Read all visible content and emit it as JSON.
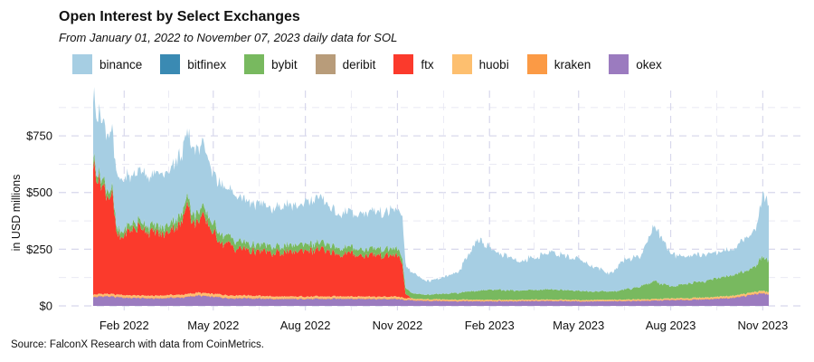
{
  "chart_data": {
    "type": "area",
    "title": "Open Interest by Select Exchanges",
    "subtitle": "From January 01, 2022 to November 07, 2023 daily data for SOL",
    "ylabel": "in USD millions",
    "xlabel": "",
    "source": "Source: FalconX Research with data from CoinMetrics.",
    "ylim": [
      0,
      950
    ],
    "y_ticks": [
      0,
      250,
      500,
      750
    ],
    "y_tick_labels": [
      "$0",
      "$250",
      "$500",
      "$750"
    ],
    "x_tick_labels": [
      "Feb 2022",
      "May 2022",
      "Aug 2022",
      "Nov 2022",
      "Feb 2023",
      "May 2023",
      "Aug 2023",
      "Nov 2023"
    ],
    "x_tick_dates": [
      "2022-02-01",
      "2022-05-01",
      "2022-08-01",
      "2022-11-01",
      "2023-02-01",
      "2023-05-01",
      "2023-08-01",
      "2023-11-01"
    ],
    "x_range": [
      "2022-01-01",
      "2023-11-07"
    ],
    "grid": true,
    "legend_position": "top",
    "stacked": true,
    "series": [
      {
        "name": "okex",
        "color": "#9b7bbf",
        "points": [
          [
            "2022-01-01",
            40
          ],
          [
            "2022-01-15",
            42
          ],
          [
            "2022-02-01",
            36
          ],
          [
            "2022-03-01",
            32
          ],
          [
            "2022-04-01",
            38
          ],
          [
            "2022-04-15",
            45
          ],
          [
            "2022-05-01",
            40
          ],
          [
            "2022-05-15",
            35
          ],
          [
            "2022-06-01",
            34
          ],
          [
            "2022-07-01",
            30
          ],
          [
            "2022-08-01",
            30
          ],
          [
            "2022-09-01",
            32
          ],
          [
            "2022-10-01",
            30
          ],
          [
            "2022-11-01",
            30
          ],
          [
            "2022-11-10",
            25
          ],
          [
            "2022-12-01",
            22
          ],
          [
            "2023-01-01",
            20
          ],
          [
            "2023-02-01",
            20
          ],
          [
            "2023-03-01",
            20
          ],
          [
            "2023-04-01",
            22
          ],
          [
            "2023-05-01",
            20
          ],
          [
            "2023-06-01",
            20
          ],
          [
            "2023-07-01",
            22
          ],
          [
            "2023-08-01",
            25
          ],
          [
            "2023-09-01",
            28
          ],
          [
            "2023-10-01",
            35
          ],
          [
            "2023-11-01",
            55
          ],
          [
            "2023-11-07",
            50
          ]
        ]
      },
      {
        "name": "kraken",
        "color": "#fb9a45",
        "points": [
          [
            "2022-01-01",
            3
          ],
          [
            "2022-06-01",
            3
          ],
          [
            "2022-11-01",
            3
          ],
          [
            "2023-06-01",
            2
          ],
          [
            "2023-11-07",
            3
          ]
        ]
      },
      {
        "name": "huobi",
        "color": "#fdbf6f",
        "points": [
          [
            "2022-01-01",
            8
          ],
          [
            "2022-05-01",
            10
          ],
          [
            "2022-08-01",
            8
          ],
          [
            "2022-11-01",
            8
          ],
          [
            "2022-11-10",
            5
          ],
          [
            "2023-03-01",
            4
          ],
          [
            "2023-08-01",
            5
          ],
          [
            "2023-11-07",
            8
          ]
        ]
      },
      {
        "name": "ftx",
        "color": "#fb3a2c",
        "points": [
          [
            "2022-01-01",
            570
          ],
          [
            "2022-01-07",
            480
          ],
          [
            "2022-01-20",
            430
          ],
          [
            "2022-01-25",
            250
          ],
          [
            "2022-02-15",
            300
          ],
          [
            "2022-03-01",
            280
          ],
          [
            "2022-03-15",
            270
          ],
          [
            "2022-04-01",
            330
          ],
          [
            "2022-04-05",
            420
          ],
          [
            "2022-04-10",
            300
          ],
          [
            "2022-04-20",
            330
          ],
          [
            "2022-05-01",
            270
          ],
          [
            "2022-05-10",
            230
          ],
          [
            "2022-06-01",
            200
          ],
          [
            "2022-07-01",
            190
          ],
          [
            "2022-08-01",
            200
          ],
          [
            "2022-08-15",
            205
          ],
          [
            "2022-09-01",
            190
          ],
          [
            "2022-10-01",
            180
          ],
          [
            "2022-11-01",
            190
          ],
          [
            "2022-11-06",
            150
          ],
          [
            "2022-11-09",
            20
          ],
          [
            "2022-11-15",
            0
          ],
          [
            "2023-11-07",
            0
          ]
        ]
      },
      {
        "name": "deribit",
        "color": "#b89c7a",
        "points": [
          [
            "2022-01-01",
            0
          ],
          [
            "2023-11-07",
            0
          ]
        ]
      },
      {
        "name": "bybit",
        "color": "#78b95f",
        "points": [
          [
            "2022-01-01",
            30
          ],
          [
            "2022-02-01",
            25
          ],
          [
            "2022-03-01",
            28
          ],
          [
            "2022-04-01",
            35
          ],
          [
            "2022-05-01",
            40
          ],
          [
            "2022-06-01",
            30
          ],
          [
            "2022-07-01",
            28
          ],
          [
            "2022-08-01",
            30
          ],
          [
            "2022-09-01",
            28
          ],
          [
            "2022-10-01",
            28
          ],
          [
            "2022-11-01",
            30
          ],
          [
            "2022-11-10",
            25
          ],
          [
            "2022-12-01",
            20
          ],
          [
            "2023-01-01",
            30
          ],
          [
            "2023-02-01",
            45
          ],
          [
            "2023-03-01",
            40
          ],
          [
            "2023-04-01",
            45
          ],
          [
            "2023-05-01",
            40
          ],
          [
            "2023-06-01",
            35
          ],
          [
            "2023-07-01",
            55
          ],
          [
            "2023-07-15",
            80
          ],
          [
            "2023-08-01",
            55
          ],
          [
            "2023-09-01",
            70
          ],
          [
            "2023-10-01",
            90
          ],
          [
            "2023-10-25",
            110
          ],
          [
            "2023-11-01",
            150
          ],
          [
            "2023-11-07",
            140
          ]
        ]
      },
      {
        "name": "bitfinex",
        "color": "#3a8ab3",
        "points": [
          [
            "2022-01-01",
            0
          ],
          [
            "2023-11-07",
            0
          ]
        ]
      },
      {
        "name": "binance",
        "color": "#a6cee3",
        "points": [
          [
            "2022-01-01",
            270
          ],
          [
            "2022-01-15",
            250
          ],
          [
            "2022-02-01",
            220
          ],
          [
            "2022-03-01",
            220
          ],
          [
            "2022-04-01",
            270
          ],
          [
            "2022-04-10",
            300
          ],
          [
            "2022-05-01",
            230
          ],
          [
            "2022-06-01",
            190
          ],
          [
            "2022-07-01",
            170
          ],
          [
            "2022-08-01",
            180
          ],
          [
            "2022-08-15",
            200
          ],
          [
            "2022-09-01",
            150
          ],
          [
            "2022-10-01",
            160
          ],
          [
            "2022-11-01",
            170
          ],
          [
            "2022-11-06",
            180
          ],
          [
            "2022-11-10",
            100
          ],
          [
            "2022-12-01",
            60
          ],
          [
            "2022-12-15",
            70
          ],
          [
            "2023-01-01",
            90
          ],
          [
            "2023-01-20",
            230
          ],
          [
            "2023-02-01",
            180
          ],
          [
            "2023-03-01",
            130
          ],
          [
            "2023-04-01",
            160
          ],
          [
            "2023-05-01",
            140
          ],
          [
            "2023-06-01",
            80
          ],
          [
            "2023-06-20",
            140
          ],
          [
            "2023-07-01",
            130
          ],
          [
            "2023-07-15",
            240
          ],
          [
            "2023-08-01",
            150
          ],
          [
            "2023-08-15",
            120
          ],
          [
            "2023-09-01",
            120
          ],
          [
            "2023-10-01",
            110
          ],
          [
            "2023-10-25",
            160
          ],
          [
            "2023-11-01",
            280
          ],
          [
            "2023-11-07",
            250
          ]
        ]
      }
    ],
    "legend_order": [
      "binance",
      "bitfinex",
      "bybit",
      "deribit",
      "ftx",
      "huobi",
      "kraken",
      "okex"
    ]
  }
}
